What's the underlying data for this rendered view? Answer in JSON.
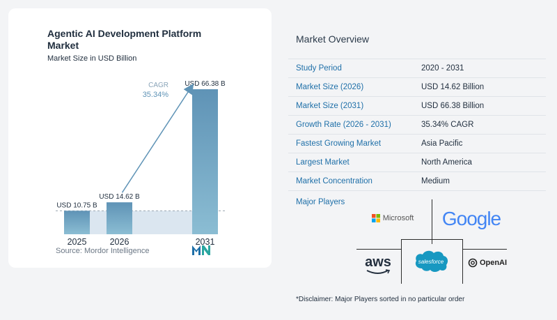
{
  "chart": {
    "title": "Agentic AI Development Platform Market",
    "subtitle": "Market Size in USD Billion",
    "source": "Source: Mordor Intelligence"
  },
  "chart_data": {
    "type": "bar",
    "categories": [
      "2025",
      "2026",
      "2031"
    ],
    "values": [
      10.75,
      14.62,
      66.38
    ],
    "data_labels": [
      "USD 10.75 B",
      "USD 14.62 B",
      "USD 66.38 B"
    ],
    "ylim": [
      0,
      70
    ],
    "grid": false,
    "annotation": {
      "label": "CAGR",
      "value": "35.34%"
    },
    "colors": {
      "bar_top": "#5f93b6",
      "bar_bottom": "#8bbdd3",
      "band": "#dbe6f0",
      "arrow": "#5f93b6"
    }
  },
  "overview": {
    "title": "Market Overview",
    "rows": [
      {
        "key": "Study Period",
        "value": "2020 - 2031"
      },
      {
        "key": "Market Size (2026)",
        "value": "USD 14.62 Billion"
      },
      {
        "key": "Market Size (2031)",
        "value": "USD 66.38 Billion"
      },
      {
        "key": "Growth Rate (2026 - 2031)",
        "value": "35.34% CAGR"
      },
      {
        "key": "Fastest Growing Market",
        "value": "Asia Pacific"
      },
      {
        "key": "Largest Market",
        "value": "North America"
      },
      {
        "key": "Market Concentration",
        "value": "Medium"
      }
    ]
  },
  "players": {
    "title": "Major Players",
    "logos": [
      "Microsoft",
      "Google",
      "aws",
      "salesforce",
      "OpenAI"
    ]
  },
  "disclaimer": "*Disclaimer: Major Players sorted in no particular order",
  "colors": {
    "accent": "#1e6fa8",
    "text": "#1f2d3d"
  }
}
